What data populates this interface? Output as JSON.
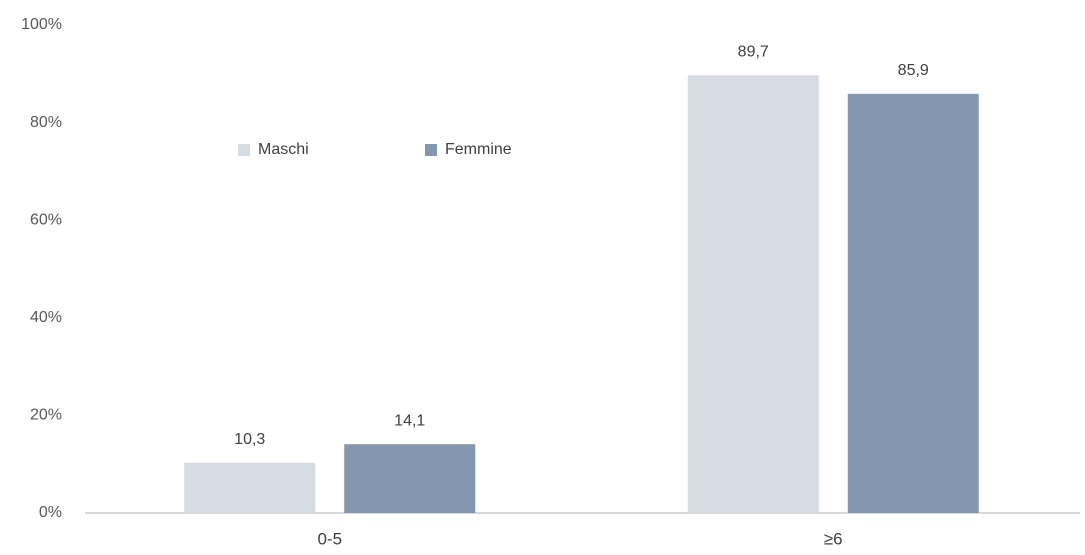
{
  "chart_data": {
    "type": "bar",
    "categories": [
      "0-5",
      "≥6"
    ],
    "series": [
      {
        "name": "Maschi",
        "color": "#d6dce4",
        "values": [
          10.3,
          89.7
        ],
        "value_labels": [
          "10,3",
          "89,7"
        ]
      },
      {
        "name": "Femmine",
        "color": "#8497b0",
        "values": [
          14.1,
          85.9
        ],
        "value_labels": [
          "14,1",
          "85,9"
        ]
      }
    ],
    "ylim": [
      0,
      100
    ],
    "yticks": [
      {
        "value": 0,
        "label": "0%"
      },
      {
        "value": 20,
        "label": "20%"
      },
      {
        "value": 40,
        "label": "40%"
      },
      {
        "value": 60,
        "label": "60%"
      },
      {
        "value": 80,
        "label": "80%"
      },
      {
        "value": 100,
        "label": "100%"
      }
    ],
    "grid": false,
    "legend": "top-left"
  }
}
